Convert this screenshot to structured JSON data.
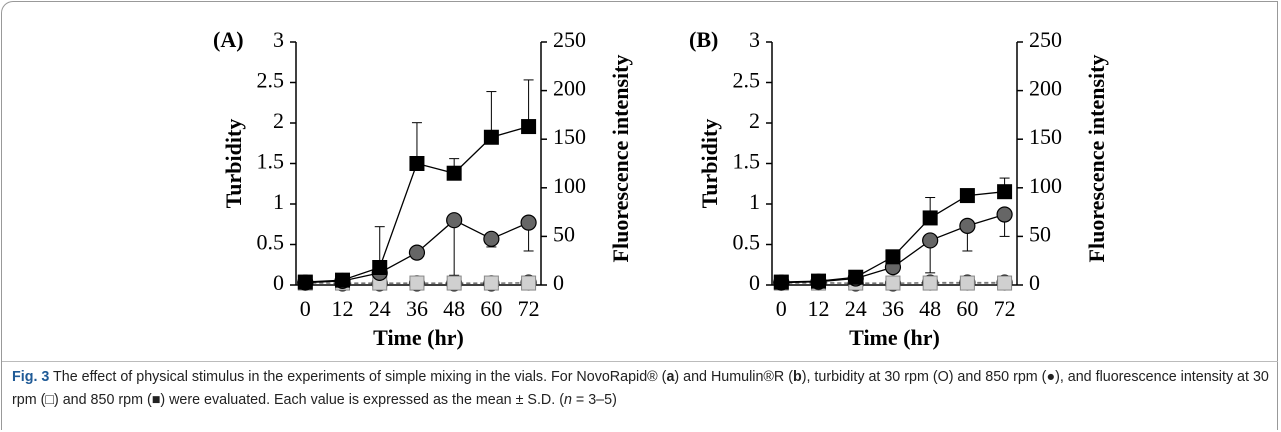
{
  "chart_data": [
    {
      "type": "line",
      "panel": "(A)",
      "xlabel": "Time (hr)",
      "ylabel": "Turbidity",
      "y2label": "Fluorescence intensity",
      "x": [
        0,
        12,
        24,
        36,
        48,
        60,
        72
      ],
      "xlim": [
        -3,
        76
      ],
      "xticks": [
        0,
        12,
        24,
        36,
        48,
        60,
        72
      ],
      "ylim": [
        0,
        3
      ],
      "yticks": [
        0,
        0.5,
        1,
        1.5,
        2,
        2.5,
        3
      ],
      "y2lim": [
        0,
        250
      ],
      "y2ticks": [
        0,
        50,
        100,
        150,
        200,
        250
      ],
      "series": [
        {
          "marker": "circle",
          "color": "#ffffff",
          "line_style": "dashed",
          "values": [
            0.03,
            0.02,
            0.02,
            0.02,
            0.02,
            0.02,
            0.03
          ]
        },
        {
          "marker": "square",
          "color": "#d0d0d0",
          "line_style": "dashed",
          "axis": "y2",
          "values": [
            2,
            2,
            2,
            2,
            2,
            2,
            2
          ]
        },
        {
          "marker": "circle",
          "color": "#666666",
          "line_style": "solid",
          "values": [
            0.03,
            0.05,
            0.15,
            0.4,
            0.8,
            0.57,
            0.77
          ],
          "errors": [
            null,
            null,
            null,
            null,
            0.68,
            0.1,
            0.35
          ],
          "error_direction": "down"
        },
        {
          "marker": "square",
          "color": "#000000",
          "line_style": "solid",
          "axis": "y2",
          "values": [
            3,
            5,
            18,
            125,
            115,
            152,
            163
          ],
          "errors": [
            null,
            null,
            42,
            42,
            15,
            47,
            48
          ],
          "error_direction": "up"
        }
      ]
    },
    {
      "type": "line",
      "panel": "(B)",
      "xlabel": "Time (hr)",
      "ylabel": "Turbidity",
      "y2label": "Fluorescence intensity",
      "x": [
        0,
        12,
        24,
        36,
        48,
        60,
        72
      ],
      "xlim": [
        -3,
        76
      ],
      "xticks": [
        0,
        12,
        24,
        36,
        48,
        60,
        72
      ],
      "ylim": [
        0,
        3
      ],
      "yticks": [
        0,
        0.5,
        1,
        1.5,
        2,
        2.5,
        3
      ],
      "y2lim": [
        0,
        250
      ],
      "y2ticks": [
        0,
        50,
        100,
        150,
        200,
        250
      ],
      "series": [
        {
          "marker": "circle",
          "color": "#ffffff",
          "line_style": "dashed",
          "values": [
            0.03,
            0.03,
            0.02,
            0.02,
            0.03,
            0.03,
            0.03
          ]
        },
        {
          "marker": "square",
          "color": "#d0d0d0",
          "line_style": "dashed",
          "axis": "y2",
          "values": [
            2,
            2,
            2,
            2,
            2,
            2,
            2
          ]
        },
        {
          "marker": "circle",
          "color": "#666666",
          "line_style": "solid",
          "values": [
            0.03,
            0.04,
            0.08,
            0.22,
            0.55,
            0.73,
            0.87
          ],
          "errors": [
            null,
            null,
            null,
            null,
            0.4,
            0.31,
            0.27
          ],
          "error_direction": "down"
        },
        {
          "marker": "square",
          "color": "#000000",
          "line_style": "solid",
          "axis": "y2",
          "values": [
            3,
            4,
            8,
            29,
            69,
            92,
            96
          ],
          "errors": [
            null,
            null,
            null,
            null,
            21,
            6,
            14
          ],
          "error_direction": "up"
        }
      ]
    }
  ],
  "caption": {
    "parts": [
      "Fig. 3",
      " The effect of physical stimulus in the experiments of simple mixing in the vials. For NovoRapid® (",
      "a",
      ") and Humulin®R (",
      "b",
      "), turbidity at 30 rpm (O) and 850 rpm (●), and fluorescence intensity at 30 rpm (□) and 850 rpm (■) were evaluated. Each value is expressed as the mean ± S.D. (",
      "n",
      " = 3–5)"
    ]
  }
}
